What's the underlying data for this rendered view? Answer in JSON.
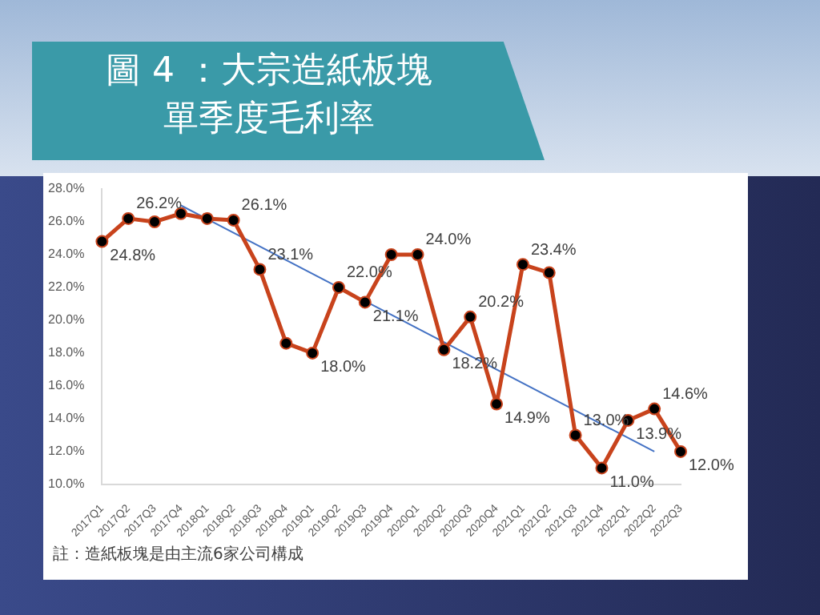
{
  "chart_data": {
    "type": "line",
    "title": "圖 4 ：大宗造紙板塊單季度毛利率",
    "categories": [
      "2017Q1",
      "2017Q2",
      "2017Q3",
      "2017Q4",
      "2018Q1",
      "2018Q2",
      "2018Q3",
      "2018Q4",
      "2019Q1",
      "2019Q2",
      "2019Q3",
      "2019Q4",
      "2020Q1",
      "2020Q2",
      "2020Q3",
      "2020Q4",
      "2021Q1",
      "2021Q2",
      "2021Q3",
      "2021Q4",
      "2022Q1",
      "2022Q2",
      "2022Q3"
    ],
    "series": [
      {
        "color": "#c8431c",
        "marker": "circle",
        "values": [
          24.8,
          26.2,
          26.0,
          26.5,
          26.2,
          26.1,
          23.1,
          18.6,
          18.0,
          22.0,
          21.1,
          24.0,
          24.0,
          18.2,
          20.2,
          14.9,
          23.4,
          22.9,
          13.0,
          11.0,
          13.9,
          14.6,
          12.0
        ],
        "value_labels": [
          "24.8%",
          "26.2%",
          null,
          null,
          null,
          "26.1%",
          "23.1%",
          null,
          "18.0%",
          "22.0%",
          "21.1%",
          null,
          "24.0%",
          "18.2%",
          "20.2%",
          "14.9%",
          "23.4%",
          null,
          "13.0%",
          "11.0%",
          "13.9%",
          "14.6%",
          "12.0%"
        ]
      },
      {
        "type": "line",
        "color": "#4472c4",
        "marker": "none",
        "x": [
          "2017Q4",
          "2022Q2"
        ],
        "values": [
          27.0,
          12.0
        ]
      }
    ],
    "ylim": [
      10,
      28
    ],
    "yticks": [
      {
        "value": 10,
        "label": "10.0%"
      },
      {
        "value": 12,
        "label": "12.0%"
      },
      {
        "value": 14,
        "label": "14.0%"
      },
      {
        "value": 16,
        "label": "16.0%"
      },
      {
        "value": 18,
        "label": "18.0%"
      },
      {
        "value": 20,
        "label": "20.0%"
      },
      {
        "value": 22,
        "label": "22.0%"
      },
      {
        "value": 24,
        "label": "24.0%"
      },
      {
        "value": 26,
        "label": "26.0%"
      },
      {
        "value": 28,
        "label": "28.0%"
      }
    ],
    "annotations": [
      "註：造紙板塊是由主流6家公司構成"
    ]
  }
}
